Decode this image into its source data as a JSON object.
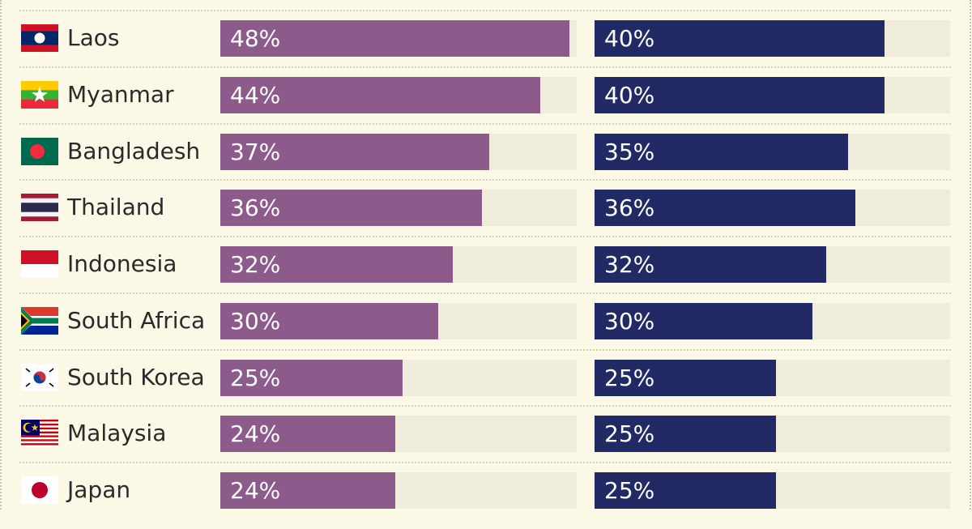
{
  "chart_data": {
    "type": "bar",
    "orientation": "horizontal",
    "xlim": [
      0,
      48
    ],
    "categories": [
      "Laos",
      "Myanmar",
      "Bangladesh",
      "Thailand",
      "Indonesia",
      "South Africa",
      "South Korea",
      "Malaysia",
      "Japan"
    ],
    "series": [
      {
        "values": [
          48,
          44,
          37,
          36,
          32,
          30,
          25,
          24,
          24
        ],
        "labels": [
          "48%",
          "44%",
          "37%",
          "36%",
          "32%",
          "30%",
          "25%",
          "24%",
          "24%"
        ],
        "color": "#8c5b8c"
      },
      {
        "values": [
          40,
          40,
          35,
          36,
          32,
          30,
          25,
          25,
          25
        ],
        "labels": [
          "40%",
          "40%",
          "35%",
          "36%",
          "32%",
          "30%",
          "25%",
          "25%",
          "25%"
        ],
        "color": "#222a66"
      }
    ],
    "grid": false,
    "legend": "none"
  },
  "flag_icons": [
    "laos-flag-icon",
    "myanmar-flag-icon",
    "bangladesh-flag-icon",
    "thailand-flag-icon",
    "indonesia-flag-icon",
    "south-africa-flag-icon",
    "south-korea-flag-icon",
    "malaysia-flag-icon",
    "japan-flag-icon"
  ],
  "colors": {
    "background": "#fbf8e6",
    "track": "#efecdc",
    "label_text": "#2a2a2a",
    "value_text": "#ffffff"
  }
}
